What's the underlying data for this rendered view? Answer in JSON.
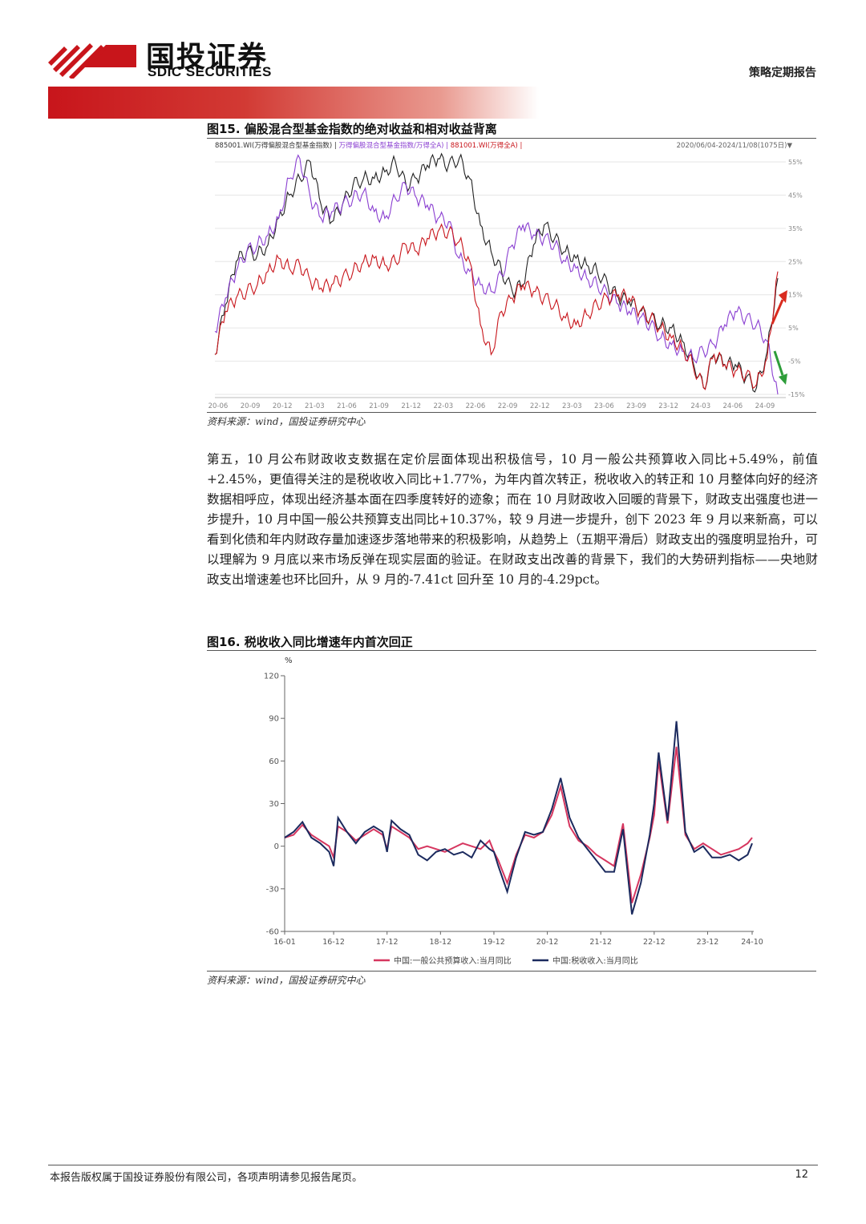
{
  "header": {
    "brand_cn": "国投证券",
    "brand_en": "SDIC SECURITIES",
    "report_type": "策略定期报告"
  },
  "figure15": {
    "title": "图15. 偏股混合型基金指数的绝对收益和相对收益背离",
    "legend_text": "885001.WI(万得偏股混合型基金指数) | 万得偏股混合型基金指数/万得全A) | 881001.WI(万得全A) |",
    "legend_parts": [
      {
        "text": "885001.WI(万得偏股混合型基金指数) |",
        "color": "#333333"
      },
      {
        "text": " 万得偏股混合型基金指数/万得全A) |",
        "color": "#8a3fd1"
      },
      {
        "text": " 881001.WI(万得全A) |",
        "color": "#c8151b"
      }
    ],
    "range": "2020/06/04-2024/11/08(1075日)▼",
    "source": "资料来源：wind，国投证券研究中心",
    "chart_data": {
      "type": "line",
      "x_ticks": [
        "20-06",
        "20-09",
        "20-12",
        "21-03",
        "21-06",
        "21-09",
        "21-12",
        "22-03",
        "22-06",
        "22-09",
        "22-12",
        "23-03",
        "23-06",
        "23-09",
        "23-12",
        "24-03",
        "24-06",
        "24-09"
      ],
      "y_ticks": [
        "55%",
        "45%",
        "35%",
        "25%",
        "15%",
        "5%",
        "-5%",
        "-15%"
      ],
      "y_values": [
        55,
        45,
        35,
        25,
        15,
        5,
        -5,
        -15
      ],
      "ylim": [
        -15,
        55
      ],
      "series": [
        {
          "name": "885001.WI(万得偏股混合型基金指数)",
          "color": "#222222",
          "x": [
            0,
            1,
            2,
            3,
            4,
            5,
            6,
            7,
            8,
            9,
            10,
            11,
            12,
            13,
            14,
            15,
            16,
            17,
            18,
            19,
            20,
            21,
            22,
            23,
            24,
            25,
            26,
            27,
            28,
            29,
            30,
            31,
            32,
            33,
            34,
            35,
            36,
            37,
            38,
            39,
            40,
            41,
            42,
            43,
            44,
            45,
            46,
            47,
            48,
            49,
            50,
            51,
            52,
            53
          ],
          "values": [
            -3,
            12,
            25,
            28,
            27,
            30,
            38,
            45,
            50,
            55,
            42,
            37,
            42,
            48,
            50,
            50,
            52,
            55,
            48,
            50,
            54,
            56,
            54,
            56,
            50,
            36,
            28,
            22,
            16,
            18,
            30,
            36,
            32,
            28,
            26,
            24,
            22,
            18,
            14,
            13,
            10,
            8,
            6,
            5,
            1,
            -5,
            -13,
            -3,
            -6,
            -6,
            -10,
            -13,
            -2,
            20
          ]
        },
        {
          "name": "万得偏股混合型基金指数/万得全A",
          "color": "#8a3fd1",
          "x": [
            0,
            1,
            2,
            3,
            4,
            5,
            6,
            7,
            8,
            9,
            10,
            11,
            12,
            13,
            14,
            15,
            16,
            17,
            18,
            19,
            20,
            21,
            22,
            23,
            24,
            25,
            26,
            27,
            28,
            29,
            30,
            31,
            32,
            33,
            34,
            35,
            36,
            37,
            38,
            39,
            40,
            41,
            42,
            43,
            44,
            45,
            46,
            47,
            48,
            49,
            50,
            51,
            52,
            53
          ],
          "values": [
            4,
            14,
            22,
            28,
            30,
            33,
            38,
            50,
            56,
            44,
            38,
            40,
            42,
            44,
            46,
            40,
            38,
            44,
            48,
            44,
            42,
            38,
            37,
            26,
            22,
            18,
            16,
            21,
            30,
            36,
            33,
            32,
            30,
            25,
            23,
            20,
            18,
            15,
            12,
            10,
            8,
            6,
            2,
            0,
            -2,
            -4,
            -2,
            0,
            6,
            10,
            8,
            6,
            1,
            -15
          ]
        },
        {
          "name": "881001.WI(万得全A)",
          "color": "#c8151b",
          "x": [
            0,
            1,
            2,
            3,
            4,
            5,
            6,
            7,
            8,
            9,
            10,
            11,
            12,
            13,
            14,
            15,
            16,
            17,
            18,
            19,
            20,
            21,
            22,
            23,
            24,
            25,
            26,
            27,
            28,
            29,
            30,
            31,
            32,
            33,
            34,
            35,
            36,
            37,
            38,
            39,
            40,
            41,
            42,
            43,
            44,
            45,
            46,
            47,
            48,
            49,
            50,
            51,
            52,
            53
          ],
          "values": [
            -3,
            10,
            14,
            16,
            18,
            22,
            26,
            23,
            24,
            19,
            17,
            18,
            20,
            22,
            25,
            26,
            24,
            25,
            30,
            28,
            32,
            34,
            34,
            31,
            25,
            6,
            -3,
            10,
            14,
            18,
            16,
            14,
            12,
            8,
            6,
            9,
            12,
            14,
            15,
            14,
            10,
            8,
            5,
            2,
            -1,
            -6,
            -13,
            -3,
            -6,
            -8,
            -9,
            -12,
            -4,
            22
          ]
        }
      ],
      "arrows": [
        {
          "color": "#d92b1f",
          "direction": "up"
        },
        {
          "color": "#2e9d3a",
          "direction": "down"
        }
      ]
    }
  },
  "body_paragraph": "第五，10 月公布财政收支数据在定价层面体现出积极信号，10 月一般公共预算收入同比+5.49%，前值+2.45%，更值得关注的是税收收入同比+1.77%，为年内首次转正，税收收入的转正和 10 月整体向好的经济数据相呼应，体现出经济基本面在四季度转好的迹象；而在 10 月财政收入回暖的背景下，财政支出强度也进一步提升，10 月中国一般公共预算支出同比+10.37%，较 9 月进一步提升，创下 2023 年 9 月以来新高，可以看到化债和年内财政存量加速逐步落地带来的积极影响，从趋势上（五期平滑后）财政支出的强度明显抬升，可以理解为 9 月底以来市场反弹在现实层面的验证。在财政支出改善的背景下，我们的大势研判指标——央地财政支出增速差也环比回升，从 9 月的-7.41ct 回升至 10 月的-4.29pct。",
  "figure16": {
    "title": "图16. 税收收入同比增速年内首次回正",
    "source": "资料来源：wind，国投证券研究中心",
    "chart_data": {
      "type": "line",
      "ylabel": "%",
      "ylim": [
        -60,
        120
      ],
      "y_ticks": [
        "120",
        "90",
        "60",
        "30",
        "0",
        "-30",
        "-60"
      ],
      "y_values": [
        120,
        90,
        60,
        30,
        0,
        -30,
        -60
      ],
      "x_ticks": [
        "16-01",
        "16-12",
        "17-12",
        "18-12",
        "19-12",
        "20-12",
        "21-12",
        "22-12",
        "23-12",
        "24-10"
      ],
      "x_tick_index": [
        0,
        11,
        23,
        35,
        47,
        59,
        71,
        83,
        95,
        105
      ],
      "x_count": 106,
      "series": [
        {
          "name": "中国:一般公共预算收入:当月同比",
          "color": "#d6365f",
          "x": [
            0,
            2,
            4,
            6,
            8,
            10,
            11,
            12,
            14,
            16,
            18,
            20,
            22,
            23,
            24,
            26,
            28,
            30,
            32,
            34,
            36,
            38,
            40,
            42,
            44,
            46,
            47,
            48,
            50,
            52,
            54,
            56,
            58,
            60,
            62,
            64,
            66,
            68,
            70,
            72,
            74,
            76,
            78,
            80,
            82,
            83,
            84,
            86,
            88,
            90,
            92,
            94,
            96,
            98,
            100,
            102,
            104,
            105
          ],
          "values": [
            6,
            8,
            15,
            8,
            4,
            0,
            -8,
            14,
            10,
            4,
            8,
            12,
            8,
            -2,
            14,
            10,
            6,
            -2,
            0,
            -2,
            -4,
            -1,
            2,
            0,
            -2,
            4,
            -4,
            -10,
            -26,
            -6,
            8,
            6,
            10,
            22,
            42,
            14,
            4,
            0,
            -6,
            -10,
            -14,
            16,
            -40,
            -20,
            6,
            22,
            60,
            16,
            70,
            8,
            -2,
            2,
            -2,
            -6,
            -4,
            -2,
            2,
            6
          ]
        },
        {
          "name": "中国:税收收入:当月同比",
          "color": "#1b2a5e",
          "x": [
            0,
            2,
            4,
            6,
            8,
            10,
            11,
            12,
            14,
            16,
            18,
            20,
            22,
            23,
            24,
            26,
            28,
            30,
            32,
            34,
            36,
            38,
            40,
            42,
            44,
            46,
            47,
            48,
            50,
            52,
            54,
            56,
            58,
            60,
            62,
            64,
            66,
            68,
            70,
            72,
            74,
            76,
            78,
            80,
            82,
            83,
            84,
            86,
            88,
            90,
            92,
            94,
            96,
            98,
            100,
            102,
            104,
            105
          ],
          "values": [
            6,
            10,
            17,
            6,
            2,
            -4,
            -14,
            20,
            10,
            2,
            10,
            14,
            10,
            -4,
            18,
            12,
            8,
            -6,
            -10,
            -4,
            -2,
            -6,
            -4,
            -8,
            4,
            -2,
            -4,
            -14,
            -32,
            -8,
            10,
            8,
            10,
            26,
            48,
            20,
            6,
            -2,
            -10,
            -18,
            -18,
            12,
            -48,
            -26,
            8,
            30,
            66,
            18,
            88,
            10,
            -4,
            0,
            -8,
            -8,
            -6,
            -10,
            -6,
            2
          ]
        }
      ]
    }
  },
  "footer": {
    "copyright": "本报告版权属于国投证券股份有限公司，各项声明请参见报告尾页。",
    "page_number": "12"
  }
}
